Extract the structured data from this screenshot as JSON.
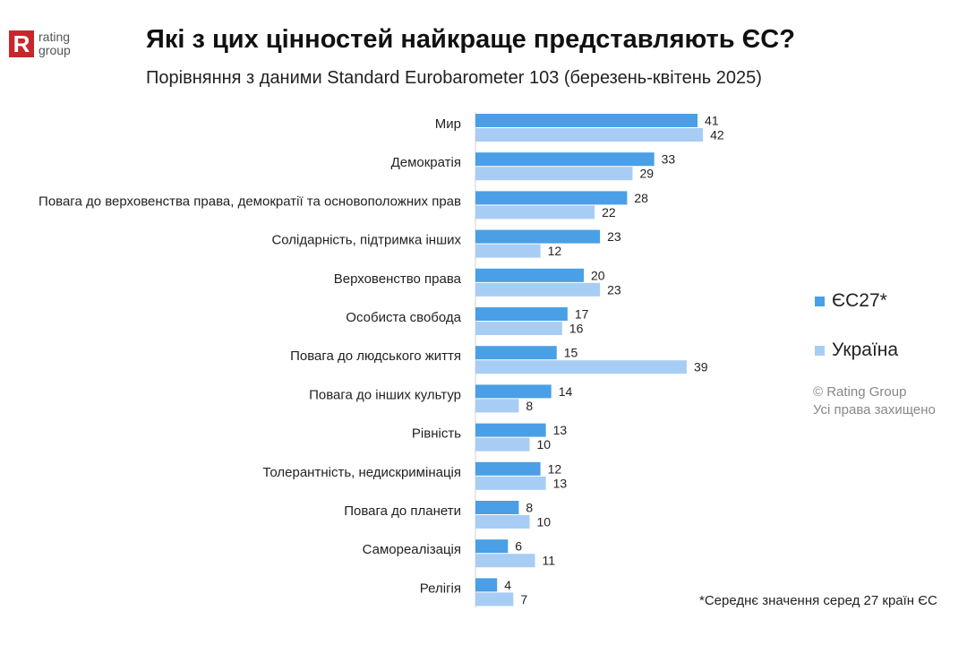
{
  "logo": {
    "mark": "R",
    "line1": "rating",
    "line2": "group"
  },
  "header": {
    "title": "Які з цих цінностей найкраще представляють ЄС?",
    "subtitle": "Порівняння з даними Standard Eurobarometer 103 (березень-квітень 2025)"
  },
  "colors": {
    "eu27": "#4a9fe6",
    "ukraine": "#a8cdf4"
  },
  "legend": {
    "eu27": "ЄС27*",
    "ukraine": "Україна"
  },
  "copyright": {
    "line1": "© Rating Group",
    "line2": "Усі права захищено"
  },
  "footnote": "*Середнє значення серед 27 країн ЄС",
  "chart_data": {
    "type": "bar",
    "orientation": "horizontal",
    "title": "Які з цих цінностей найкраще представляють ЄС?",
    "subtitle": "Порівняння з даними Standard Eurobarometer 103 (березень-квітень 2025)",
    "categories": [
      "Мир",
      "Демократія",
      "Повага до верховенства права, демократії та основоположних прав",
      "Солідарність, підтримка інших",
      "Верховенство права",
      "Особиста свобода",
      "Повага до людського життя",
      "Повага до інших культур",
      "Рівність",
      "Толерантність, недискримінація",
      "Повага до планети",
      "Самореалізація",
      "Релігія"
    ],
    "series": [
      {
        "name": "ЄС27*",
        "values": [
          41,
          33,
          28,
          23,
          20,
          17,
          15,
          14,
          13,
          12,
          8,
          6,
          4
        ]
      },
      {
        "name": "Україна",
        "values": [
          42,
          29,
          22,
          12,
          23,
          16,
          39,
          8,
          10,
          13,
          10,
          11,
          7
        ]
      }
    ],
    "xlim": [
      0,
      45
    ],
    "grid": false,
    "legend_position": "right"
  }
}
